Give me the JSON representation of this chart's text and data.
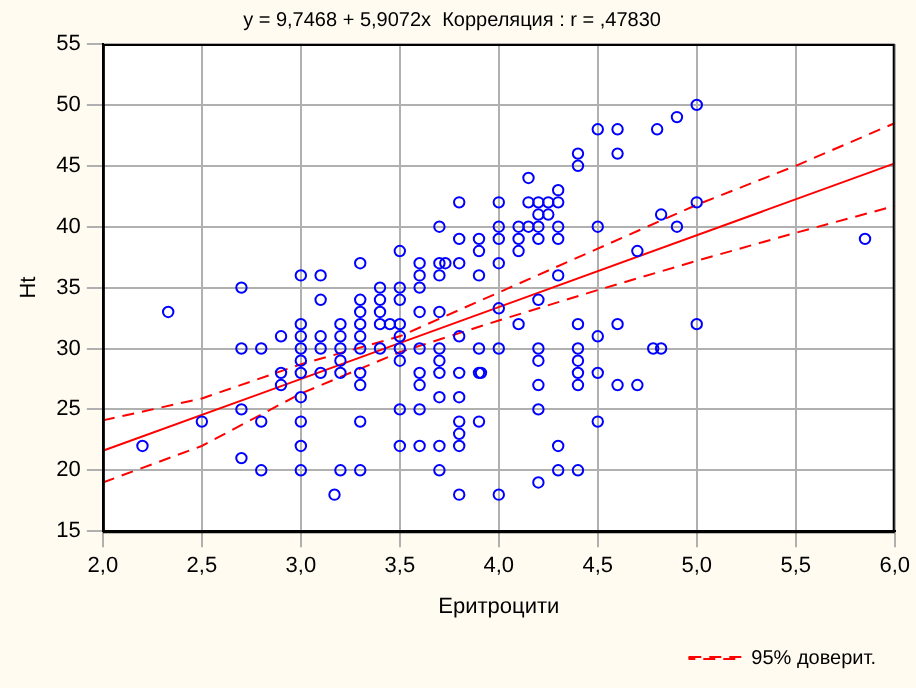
{
  "chart_data": {
    "type": "scatter",
    "title": "y = 9,7468 + 5,9072x  Корреляция : r = ,47830",
    "xlabel": "Еритроцити",
    "ylabel": "Ht",
    "xlim": [
      2,
      6
    ],
    "xticks": [
      {
        "value": 2,
        "label": "2,0"
      },
      {
        "value": 2.5,
        "label": "2,5"
      },
      {
        "value": 3,
        "label": "3,0"
      },
      {
        "value": 3.5,
        "label": "3,5"
      },
      {
        "value": 4,
        "label": "4,0"
      },
      {
        "value": 4.5,
        "label": "4,5"
      },
      {
        "value": 5,
        "label": "5,0"
      },
      {
        "value": 5.5,
        "label": "5,5"
      },
      {
        "value": 6,
        "label": "6,0"
      }
    ],
    "ylim": [
      15,
      55
    ],
    "yticks": [
      15,
      20,
      25,
      30,
      35,
      40,
      45,
      50,
      55
    ],
    "grid": true,
    "legend": "bottom right",
    "marker": "circle",
    "series": [
      {
        "color": "#0000ff",
        "x": [
          2.33,
          2.2,
          2.5,
          2.7,
          2.7,
          2.7,
          2.7,
          2.8,
          2.8,
          2.8,
          2.9,
          2.9,
          2.9,
          3,
          3,
          3,
          3,
          3,
          3,
          3,
          3,
          3,
          3,
          3.1,
          3.1,
          3.1,
          3.1,
          3.1,
          3.17,
          3.2,
          3.2,
          3.2,
          3.2,
          3.2,
          3.2,
          3.3,
          3.3,
          3.3,
          3.3,
          3.3,
          3.3,
          3.3,
          3.3,
          3.3,
          3.3,
          3.4,
          3.4,
          3.4,
          3.4,
          3.4,
          3.45,
          3.5,
          3.5,
          3.5,
          3.5,
          3.5,
          3.5,
          3.5,
          3.5,
          3.5,
          3.6,
          3.6,
          3.6,
          3.6,
          3.6,
          3.6,
          3.6,
          3.6,
          3.6,
          3.7,
          3.7,
          3.7,
          3.7,
          3.7,
          3.7,
          3.7,
          3.7,
          3.7,
          3.7,
          3.73,
          3.8,
          3.8,
          3.8,
          3.8,
          3.8,
          3.8,
          3.8,
          3.8,
          3.8,
          3.8,
          3.9,
          3.9,
          3.9,
          3.9,
          3.9,
          3.9,
          3.91,
          4,
          4,
          4,
          4,
          4,
          4,
          4,
          4.1,
          4.1,
          4.1,
          4.1,
          4.15,
          4.15,
          4.15,
          4.2,
          4.2,
          4.2,
          4.2,
          4.2,
          4.2,
          4.2,
          4.2,
          4.2,
          4.2,
          4.25,
          4.25,
          4.3,
          4.3,
          4.3,
          4.3,
          4.3,
          4.3,
          4.3,
          4.4,
          4.4,
          4.4,
          4.4,
          4.4,
          4.4,
          4.4,
          4.4,
          4.5,
          4.5,
          4.5,
          4.5,
          4.5,
          4.6,
          4.6,
          4.6,
          4.6,
          4.7,
          4.7,
          4.8,
          4.9,
          5,
          5,
          4.82,
          4.9,
          5,
          4.78,
          4.82,
          5.85
        ],
        "values": [
          33,
          22,
          24,
          35,
          30,
          25,
          21,
          30,
          24,
          20,
          31,
          28,
          27,
          36,
          32,
          31,
          30,
          29,
          28,
          26,
          24,
          22,
          20,
          36,
          34,
          31,
          30,
          28,
          18,
          32,
          31,
          30,
          29,
          28,
          20,
          37,
          34,
          33,
          32,
          31,
          30,
          28,
          27,
          24,
          20,
          35,
          34,
          33,
          32,
          30,
          32,
          38,
          35,
          34,
          32,
          31,
          30,
          29,
          25,
          22,
          37,
          36,
          35,
          33,
          30,
          28,
          27,
          25,
          22,
          40,
          37,
          36,
          33,
          30,
          29,
          28,
          26,
          22,
          20,
          37,
          42,
          39,
          37,
          31,
          28,
          26,
          24,
          23,
          22,
          18,
          39,
          38,
          36,
          30,
          28,
          24,
          28,
          42,
          40,
          39,
          37,
          33.3,
          30,
          18,
          40,
          39,
          38,
          32,
          44,
          42,
          40,
          42,
          41,
          40,
          39,
          34,
          30,
          29,
          27,
          25,
          19,
          42,
          41,
          43,
          42,
          40,
          39,
          36,
          22,
          20,
          46,
          45,
          32,
          30,
          29,
          28,
          27,
          20,
          48,
          40,
          31,
          28,
          24,
          48,
          46,
          32,
          27,
          38,
          27,
          48,
          49,
          50,
          42,
          41,
          40,
          32,
          30,
          30,
          39
        ]
      },
      {
        "type": "line",
        "color": "#ff0000",
        "line_style": "solid",
        "marker": "none",
        "x": [
          2,
          6
        ],
        "values": [
          21.6,
          45.2
        ]
      },
      {
        "type": "line",
        "name": "95% доверит.",
        "color": "#ff0000",
        "line_style": "dashed",
        "marker": "none",
        "x": [
          2,
          2.5,
          3,
          3.5,
          4,
          4.5,
          5,
          5.5,
          6
        ],
        "values": [
          24.1,
          25.9,
          28.7,
          31.0,
          34.6,
          38.2,
          41.8,
          45.0,
          48.5
        ]
      },
      {
        "type": "line",
        "color": "#ff0000",
        "line_style": "dashed",
        "marker": "none",
        "x": [
          2,
          2.5,
          3,
          3.5,
          4,
          4.5,
          5,
          5.5,
          6
        ],
        "values": [
          19.0,
          22.0,
          26.3,
          29.7,
          32.3,
          34.8,
          37.2,
          39.5,
          41.7
        ]
      }
    ]
  }
}
